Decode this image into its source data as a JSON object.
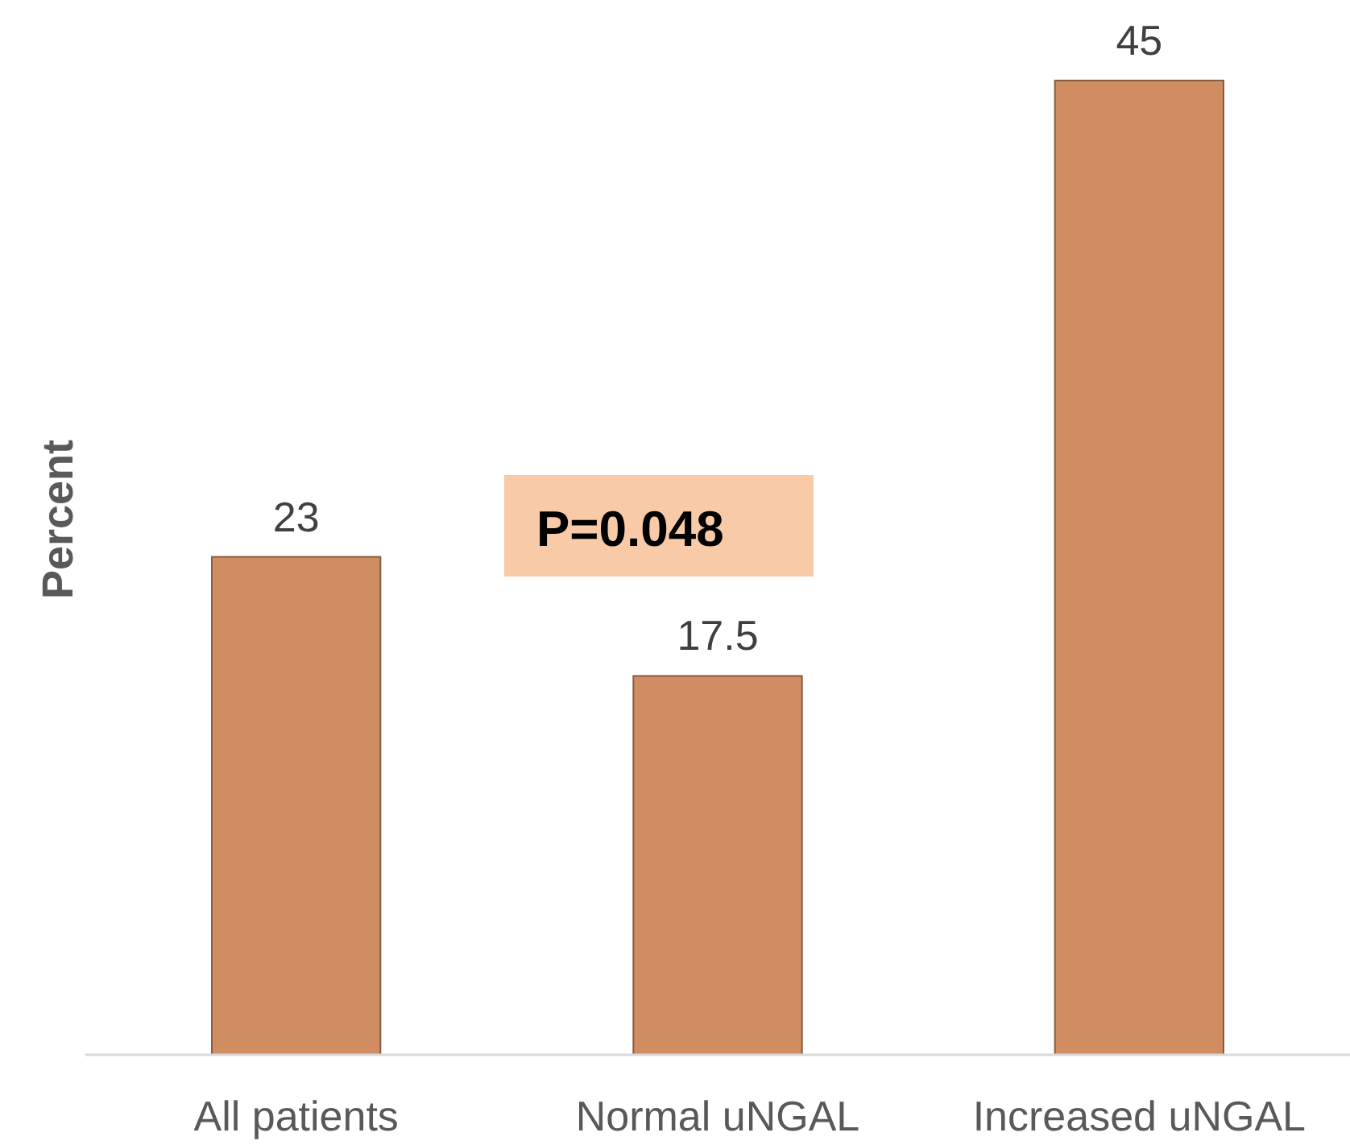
{
  "chart_data": {
    "type": "bar",
    "ylabel": "Percent",
    "categories": [
      "All patients",
      "Normal uNGAL",
      "Increased uNGAL"
    ],
    "values": [
      23,
      17.5,
      45
    ],
    "color": "#d18d62",
    "data_labels": true,
    "annotations": [
      "P=0.048"
    ]
  }
}
